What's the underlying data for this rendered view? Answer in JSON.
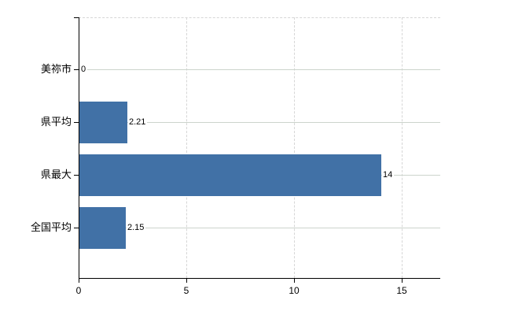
{
  "chart_data": {
    "type": "bar",
    "orientation": "horizontal",
    "title": "",
    "xlabel": "",
    "ylabel": "",
    "categories": [
      "美祢市",
      "県平均",
      "県最大",
      "全国平均"
    ],
    "values": [
      0,
      2.21,
      14,
      2.15
    ],
    "value_labels": [
      "0",
      "2.21",
      "14",
      "2.15"
    ],
    "x_ticks": [
      0,
      5,
      10,
      15
    ],
    "x_tick_labels": [
      "0",
      "5",
      "10",
      "15"
    ],
    "xlim": [
      0,
      16.8
    ],
    "grid": "solid horizontal line per category, dashed vertical lines at ticks, dashed top border",
    "legend": "none",
    "colors": {
      "bar": "#4171a6",
      "axis": "#000000",
      "grid_row": "#ccd4cc",
      "grid_col": "#d6d6d6",
      "background": "#ffffff",
      "text": "#000000"
    }
  }
}
